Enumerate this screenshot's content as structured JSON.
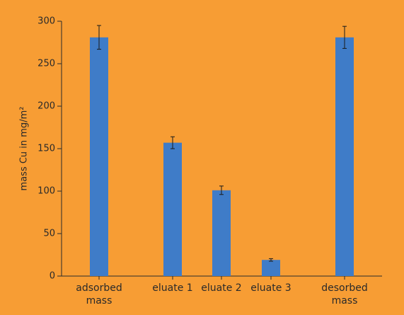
{
  "chart_data": {
    "type": "bar",
    "ylabel": "mass Cu in mg/m²",
    "categories": [
      "adsorbed mass",
      "eluate 1",
      "eluate 2",
      "eluate 3",
      "desorbed mass"
    ],
    "values": [
      281,
      157,
      101,
      19,
      281
    ],
    "errors": [
      14,
      7,
      5,
      1.5,
      13
    ],
    "color": "#3f7cc8",
    "background": "#f79d34",
    "ylim": [
      0,
      300
    ],
    "yticks": [
      0,
      50,
      100,
      150,
      200,
      250,
      300
    ]
  }
}
